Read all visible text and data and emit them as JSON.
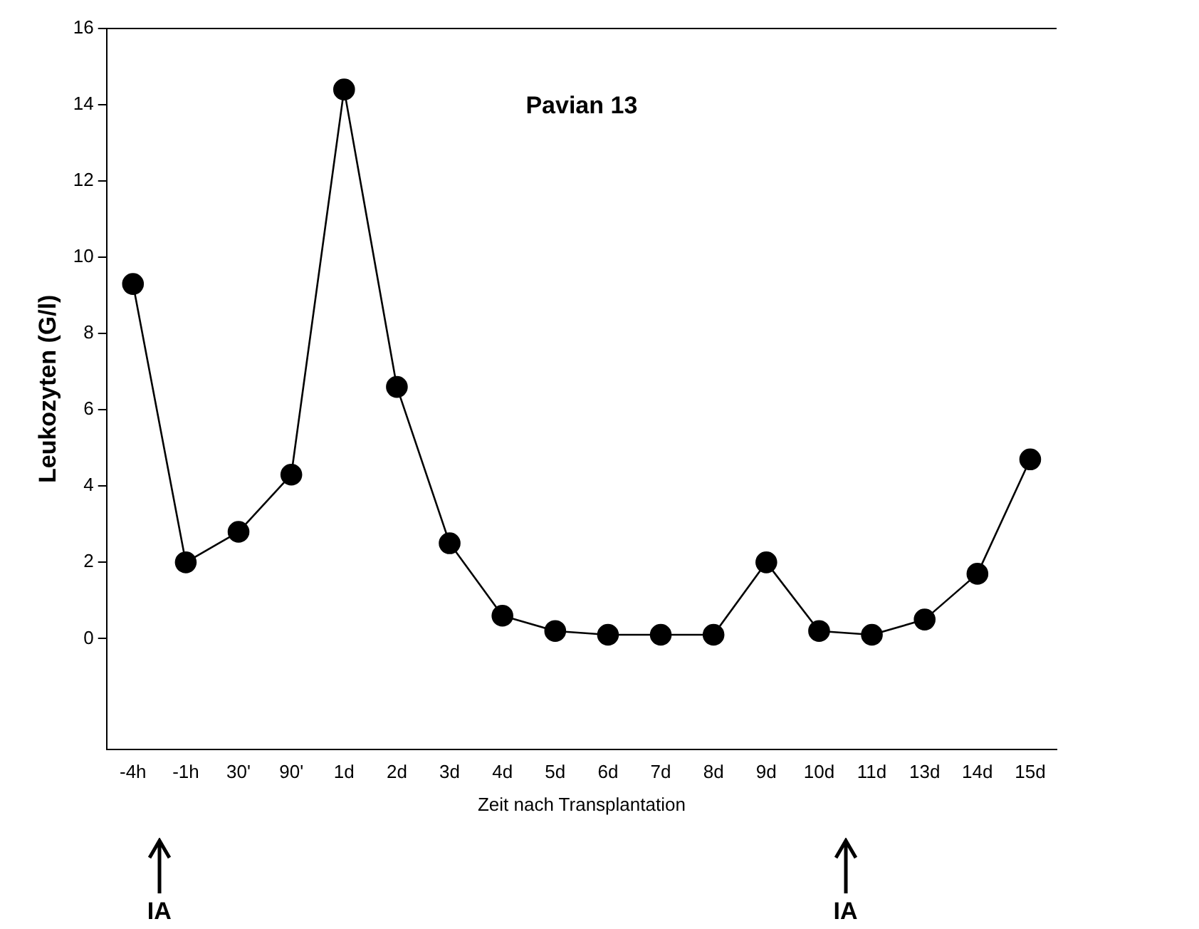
{
  "chart_data": {
    "type": "line",
    "title": "Pavian 13",
    "xlabel": "Zeit nach Transplantation",
    "ylabel": "Leukozyten (G/l)",
    "categories": [
      "-4h",
      "-1h",
      "30'",
      "90'",
      "1d",
      "2d",
      "3d",
      "4d",
      "5d",
      "6d",
      "7d",
      "8d",
      "9d",
      "10d",
      "11d",
      "13d",
      "14d",
      "15d"
    ],
    "series": [
      {
        "color": "#000000",
        "values": [
          9.3,
          2.0,
          2.8,
          4.3,
          14.4,
          6.6,
          2.5,
          0.6,
          0.2,
          0.1,
          0.1,
          0.1,
          2.0,
          0.2,
          0.1,
          0.5,
          1.7,
          4.7
        ]
      }
    ],
    "ylim": [
      -2.9,
      16
    ],
    "yticks": [
      0,
      2,
      4,
      6,
      8,
      10,
      12,
      14,
      16
    ],
    "grid": false,
    "legend": false,
    "marker": "circle",
    "line_style": "solid",
    "annotations": [
      "IA",
      "IA"
    ]
  }
}
